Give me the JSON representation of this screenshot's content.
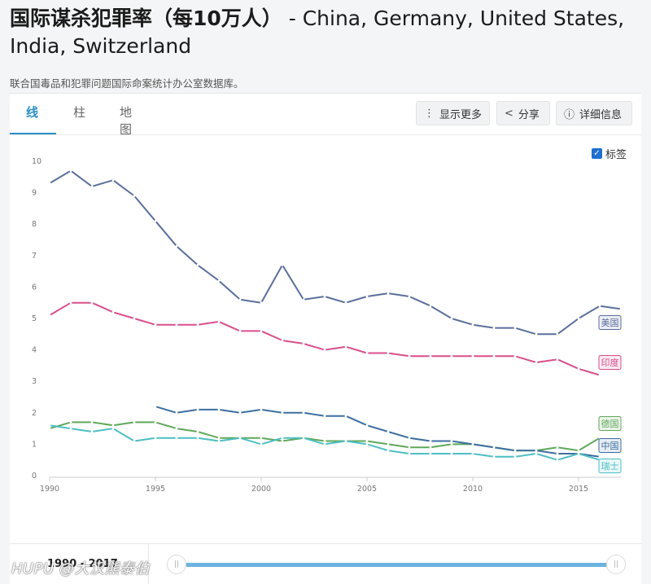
{
  "page": {
    "title_zh": "国际谋杀犯罪率（每10万人）",
    "title_rest": " - China, Germany, United States, India, Switzerland",
    "source": "联合国毒品和犯罪问题国际命案统计办公室数据库。"
  },
  "tabs": [
    {
      "label": "线",
      "active": true
    },
    {
      "label": "柱",
      "active": false
    },
    {
      "label": "地图",
      "active": false
    }
  ],
  "toolbar": {
    "more_icon": "vertical-dots-icon",
    "more_label": "显示更多",
    "share_icon": "share-icon",
    "share_label": "分享",
    "details_icon": "info-icon",
    "details_label": "详细信息"
  },
  "labels_toggle": {
    "label": "标签",
    "checked": true
  },
  "range": {
    "label": "1990 - 2017",
    "start": 1990,
    "end": 2017
  },
  "watermark": "HUPU @大汉熊泰伯",
  "chart_data": {
    "type": "line",
    "x_ticks": [
      1990,
      1995,
      2000,
      2005,
      2010,
      2015
    ],
    "y_ticks": [
      0,
      1,
      2,
      3,
      4,
      5,
      6,
      7,
      8,
      9,
      10
    ],
    "xlim": [
      1990,
      2017
    ],
    "ylim": [
      0,
      10
    ],
    "grid": false,
    "series": [
      {
        "name": "美国",
        "color": "#5b6f9c",
        "x": [
          1990,
          1991,
          1992,
          1993,
          1994,
          1995,
          1996,
          1997,
          1998,
          1999,
          2000,
          2001,
          2002,
          2003,
          2004,
          2005,
          2006,
          2007,
          2008,
          2009,
          2010,
          2011,
          2012,
          2013,
          2014,
          2015,
          2016,
          2017
        ],
        "values": [
          9.3,
          9.7,
          9.2,
          9.4,
          8.9,
          8.1,
          7.3,
          6.7,
          6.2,
          5.6,
          5.5,
          6.7,
          5.6,
          5.7,
          5.5,
          5.7,
          5.8,
          5.7,
          5.4,
          5.0,
          4.8,
          4.7,
          4.7,
          4.5,
          4.5,
          5.0,
          5.4,
          5.3
        ]
      },
      {
        "name": "印度",
        "color": "#d94f8c",
        "x": [
          1990,
          1991,
          1992,
          1993,
          1994,
          1995,
          1996,
          1997,
          1998,
          1999,
          2000,
          2001,
          2002,
          2003,
          2004,
          2005,
          2006,
          2007,
          2008,
          2009,
          2010,
          2011,
          2012,
          2013,
          2014,
          2015,
          2016
        ],
        "values": [
          5.1,
          5.5,
          5.5,
          5.2,
          5.0,
          4.8,
          4.8,
          4.8,
          4.9,
          4.6,
          4.6,
          4.3,
          4.2,
          4.0,
          4.1,
          3.9,
          3.9,
          3.8,
          3.8,
          3.8,
          3.8,
          3.8,
          3.8,
          3.6,
          3.7,
          3.4,
          3.2
        ]
      },
      {
        "name": "德国",
        "color": "#5fa85a",
        "x": [
          1990,
          1991,
          1992,
          1993,
          1994,
          1995,
          1996,
          1997,
          1998,
          1999,
          2000,
          2001,
          2002,
          2003,
          2004,
          2005,
          2006,
          2007,
          2008,
          2009,
          2010,
          2011,
          2012,
          2013,
          2014,
          2015,
          2016
        ],
        "values": [
          1.5,
          1.7,
          1.7,
          1.6,
          1.7,
          1.7,
          1.5,
          1.4,
          1.2,
          1.2,
          1.2,
          1.1,
          1.2,
          1.1,
          1.1,
          1.1,
          1.0,
          0.9,
          0.9,
          1.0,
          1.0,
          0.9,
          0.8,
          0.8,
          0.9,
          0.8,
          1.2
        ]
      },
      {
        "name": "中国",
        "color": "#3d6fa0",
        "x": [
          1995,
          1996,
          1997,
          1998,
          1999,
          2000,
          2001,
          2002,
          2003,
          2004,
          2005,
          2006,
          2007,
          2008,
          2009,
          2010,
          2011,
          2012,
          2013,
          2014,
          2015,
          2016
        ],
        "values": [
          2.2,
          2.0,
          2.1,
          2.1,
          2.0,
          2.1,
          2.0,
          2.0,
          1.9,
          1.9,
          1.6,
          1.4,
          1.2,
          1.1,
          1.1,
          1.0,
          0.9,
          0.8,
          0.8,
          0.7,
          0.7,
          0.6
        ]
      },
      {
        "name": "瑞士",
        "color": "#4dbfc4",
        "x": [
          1990,
          1991,
          1992,
          1993,
          1994,
          1995,
          1996,
          1997,
          1998,
          1999,
          2000,
          2001,
          2002,
          2003,
          2004,
          2005,
          2006,
          2007,
          2008,
          2009,
          2010,
          2011,
          2012,
          2013,
          2014,
          2015,
          2016
        ],
        "values": [
          1.6,
          1.5,
          1.4,
          1.5,
          1.1,
          1.2,
          1.2,
          1.2,
          1.1,
          1.2,
          1.0,
          1.2,
          1.2,
          1.0,
          1.1,
          1.0,
          0.8,
          0.7,
          0.7,
          0.7,
          0.7,
          0.6,
          0.6,
          0.7,
          0.5,
          0.7,
          0.5
        ]
      }
    ]
  }
}
